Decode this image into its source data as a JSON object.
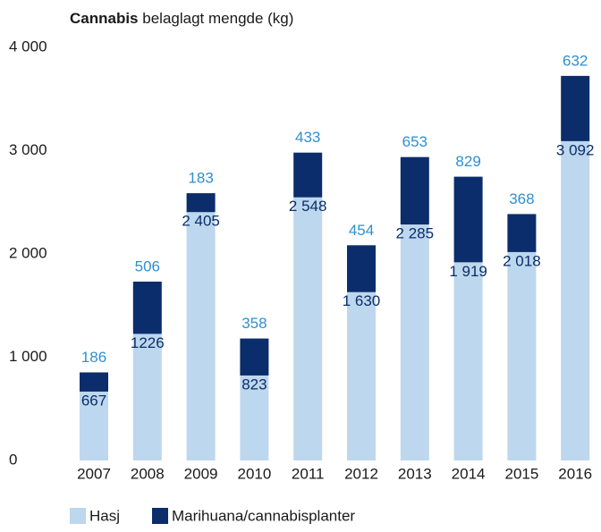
{
  "chart_data": {
    "type": "stacked_bar",
    "title_bold": "Cannabis",
    "title": "belaglagt mengde (kg)",
    "categories": [
      "2007",
      "2008",
      "2009",
      "2010",
      "2011",
      "2012",
      "2013",
      "2014",
      "2015",
      "2016"
    ],
    "series": [
      {
        "name": "Hasj",
        "color": "#bdd7ee",
        "label_color": "#0b2d6b",
        "values": [
          667,
          1226,
          2405,
          823,
          2548,
          1630,
          2285,
          1919,
          2018,
          3092
        ],
        "value_labels": [
          "667",
          "1226",
          "2 405",
          "823",
          "2 548",
          "1 630",
          "2 285",
          "1 919",
          "2 018",
          "3 092"
        ]
      },
      {
        "name": "Marihuana/cannabisplanter",
        "color": "#0b2d6b",
        "label_color": "#2f8fd0",
        "values": [
          186,
          506,
          183,
          358,
          433,
          454,
          653,
          829,
          368,
          632
        ]
      }
    ],
    "ylim": [
      0,
      4000
    ],
    "yticks": [
      0,
      {
        "value": 1000,
        "label": "1 000"
      },
      {
        "value": 2000,
        "label": "2 000"
      },
      {
        "value": 3000,
        "label": "3 000"
      },
      {
        "value": 4000,
        "label": "4 000"
      }
    ],
    "grid": false
  }
}
